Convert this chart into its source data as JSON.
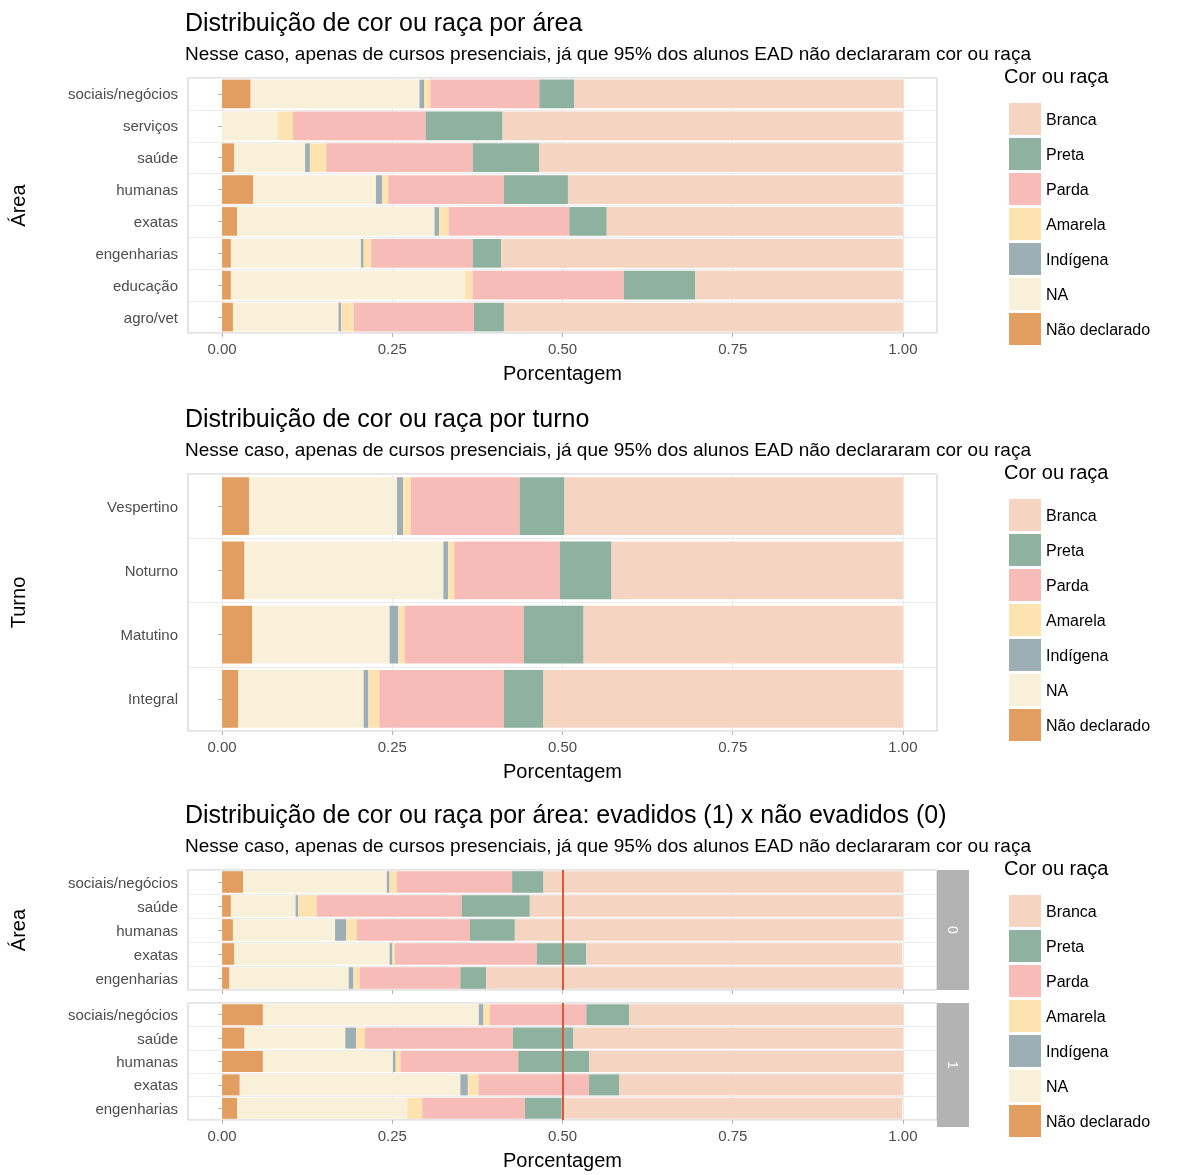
{
  "chart_data": [
    {
      "type": "bar",
      "orientation": "horizontal",
      "stacked": true,
      "title": "Distribuição de cor ou raça por área",
      "subtitle": "Nesse caso, apenas de cursos presenciais, já que 95% dos alunos EAD não declararam cor ou raça",
      "xlabel": "Porcentagem",
      "ylabel": "Área",
      "legend_title": "Cor ou raça",
      "legend": "right",
      "grid": true,
      "categories": [
        "sociais/negócios",
        "serviços",
        "saúde",
        "humanas",
        "exatas",
        "engenharias",
        "educação",
        "agro/vet"
      ],
      "xlim": [
        -0.05,
        1.05
      ],
      "xticks": [
        {
          "value": 0,
          "label": "0.00"
        },
        {
          "value": 0.25,
          "label": "0.25"
        },
        {
          "value": 0.5,
          "label": "0.50"
        },
        {
          "value": 0.75,
          "label": "0.75"
        },
        {
          "value": 1,
          "label": "1.00"
        }
      ],
      "series": [
        {
          "name": "Não declarado",
          "color": "#e29e60",
          "values": [
            0.042,
            0,
            0.018,
            0.046,
            0.022,
            0.013,
            0.013,
            0.016
          ]
        },
        {
          "name": "NA",
          "color": "#f9f0d9",
          "values": [
            0.248,
            0.082,
            0.104,
            0.18,
            0.29,
            0.191,
            0.344,
            0.155
          ]
        },
        {
          "name": "Indígena",
          "color": "#9eaeb5",
          "values": [
            0.007,
            0,
            0.007,
            0.009,
            0.007,
            0.004,
            0,
            0.004
          ]
        },
        {
          "name": "Amarela",
          "color": "#fde3b0",
          "values": [
            0.009,
            0.022,
            0.024,
            0.009,
            0.014,
            0.011,
            0.011,
            0.018
          ]
        },
        {
          "name": "Parda",
          "color": "#f8bcb8",
          "values": [
            0.16,
            0.195,
            0.215,
            0.17,
            0.177,
            0.149,
            0.222,
            0.177
          ]
        },
        {
          "name": "Preta",
          "color": "#8fb19f",
          "values": [
            0.051,
            0.113,
            0.098,
            0.094,
            0.055,
            0.042,
            0.105,
            0.044
          ]
        },
        {
          "name": "Branca",
          "color": "#f5d5c2",
          "values": [
            0.484,
            0.588,
            0.534,
            0.492,
            0.435,
            0.59,
            0.305,
            0.586
          ]
        }
      ]
    },
    {
      "type": "bar",
      "orientation": "horizontal",
      "stacked": true,
      "title": "Distribuição de cor ou raça por turno",
      "subtitle": "Nesse caso, apenas de cursos presenciais, já que 95% dos alunos EAD não declararam cor ou raça",
      "xlabel": "Porcentagem",
      "ylabel": "Turno",
      "legend_title": "Cor ou raça",
      "legend": "right",
      "grid": true,
      "categories": [
        "Vespertino",
        "Noturno",
        "Matutino",
        "Integral"
      ],
      "xlim": [
        -0.05,
        1.05
      ],
      "xticks": [
        {
          "value": 0,
          "label": "0.00"
        },
        {
          "value": 0.25,
          "label": "0.25"
        },
        {
          "value": 0.5,
          "label": "0.50"
        },
        {
          "value": 0.75,
          "label": "0.75"
        },
        {
          "value": 1,
          "label": "1.00"
        }
      ],
      "series": [
        {
          "name": "Não declarado",
          "color": "#e29e60",
          "values": [
            0.04,
            0.033,
            0.044,
            0.024
          ]
        },
        {
          "name": "NA",
          "color": "#f9f0d9",
          "values": [
            0.217,
            0.292,
            0.202,
            0.184
          ]
        },
        {
          "name": "Indígena",
          "color": "#9eaeb5",
          "values": [
            0.009,
            0.007,
            0.013,
            0.007
          ]
        },
        {
          "name": "Amarela",
          "color": "#fde3b0",
          "values": [
            0.011,
            0.009,
            0.009,
            0.016
          ]
        },
        {
          "name": "Parda",
          "color": "#f8bcb8",
          "values": [
            0.16,
            0.155,
            0.175,
            0.183
          ]
        },
        {
          "name": "Preta",
          "color": "#8fb19f",
          "values": [
            0.066,
            0.076,
            0.088,
            0.058
          ]
        },
        {
          "name": "Branca",
          "color": "#f5d5c2",
          "values": [
            0.497,
            0.428,
            0.469,
            0.528
          ]
        }
      ]
    },
    {
      "type": "bar",
      "orientation": "horizontal",
      "stacked": true,
      "title": "Distribuição de cor ou raça por área: evadidos (1) x não evadidos (0)",
      "subtitle": "Nesse caso, apenas de cursos presenciais, já que 95% dos alunos EAD não declararam cor ou raça",
      "ylabel": "Área",
      "legend_title": "Cor ou raça",
      "legend": "right",
      "grid": true,
      "tick_labels": "y",
      "annotations": [
        "0"
      ],
      "categories": [
        "sociais/negócios",
        "saúde",
        "humanas",
        "exatas",
        "engenharias"
      ],
      "xlim": [
        -0.05,
        1.05
      ],
      "xticks": [
        {
          "value": 0,
          "label": null
        },
        {
          "value": 0.25,
          "label": null
        },
        {
          "value": 0.5,
          "label": null
        },
        {
          "value": 0.75,
          "label": null
        },
        {
          "value": 1,
          "label": null
        }
      ],
      "ref_lines": [
        {
          "axis": "x",
          "value": 0.5,
          "color": "#d9583a"
        }
      ],
      "series": [
        {
          "name": "Não declarado",
          "color": "#e29e60",
          "values": [
            0.031,
            0.013,
            0.016,
            0.018,
            0.011
          ]
        },
        {
          "name": "NA",
          "color": "#f9f0d9",
          "values": [
            0.211,
            0.095,
            0.15,
            0.228,
            0.175
          ]
        },
        {
          "name": "Indígena",
          "color": "#9eaeb5",
          "values": [
            0.004,
            0.004,
            0.016,
            0.004,
            0.007
          ]
        },
        {
          "name": "Amarela",
          "color": "#fde3b0",
          "values": [
            0.011,
            0.027,
            0.016,
            0.004,
            0.009
          ]
        },
        {
          "name": "Parda",
          "color": "#f8bcb8",
          "values": [
            0.169,
            0.213,
            0.166,
            0.208,
            0.148
          ]
        },
        {
          "name": "Preta",
          "color": "#8fb19f",
          "values": [
            0.046,
            0.1,
            0.066,
            0.073,
            0.038
          ]
        },
        {
          "name": "Branca",
          "color": "#f5d5c2",
          "values": [
            0.528,
            0.548,
            0.57,
            0.464,
            0.612
          ]
        }
      ]
    },
    {
      "type": "bar",
      "orientation": "horizontal",
      "stacked": true,
      "xlabel": "Porcentagem",
      "grid": true,
      "annotations": [
        "1"
      ],
      "categories": [
        "sociais/negócios",
        "saúde",
        "humanas",
        "exatas",
        "engenharias"
      ],
      "xlim": [
        -0.05,
        1.05
      ],
      "xticks": [
        {
          "value": 0,
          "label": "0.00"
        },
        {
          "value": 0.25,
          "label": "0.25"
        },
        {
          "value": 0.5,
          "label": "0.50"
        },
        {
          "value": 0.75,
          "label": "0.75"
        },
        {
          "value": 1,
          "label": "1.00"
        }
      ],
      "ref_lines": [
        {
          "axis": "x",
          "value": 0.5,
          "color": "#d9583a"
        }
      ],
      "series": [
        {
          "color": "#e29e60",
          "values": [
            0.06,
            0.033,
            0.06,
            0.026,
            0.022
          ]
        },
        {
          "color": "#f9f0d9",
          "values": [
            0.317,
            0.148,
            0.191,
            0.324,
            0.25
          ]
        },
        {
          "color": "#9eaeb5",
          "values": [
            0.007,
            0.016,
            0.004,
            0.011,
            0
          ]
        },
        {
          "color": "#fde3b0",
          "values": [
            0.009,
            0.013,
            0.007,
            0.016,
            0.022
          ]
        },
        {
          "color": "#f8bcb8",
          "values": [
            0.142,
            0.217,
            0.173,
            0.162,
            0.151
          ]
        },
        {
          "color": "#8fb19f",
          "values": [
            0.063,
            0.089,
            0.104,
            0.044,
            0.054
          ]
        },
        {
          "color": "#f5d5c2",
          "values": [
            0.403,
            0.484,
            0.462,
            0.417,
            0.5
          ]
        }
      ]
    }
  ]
}
